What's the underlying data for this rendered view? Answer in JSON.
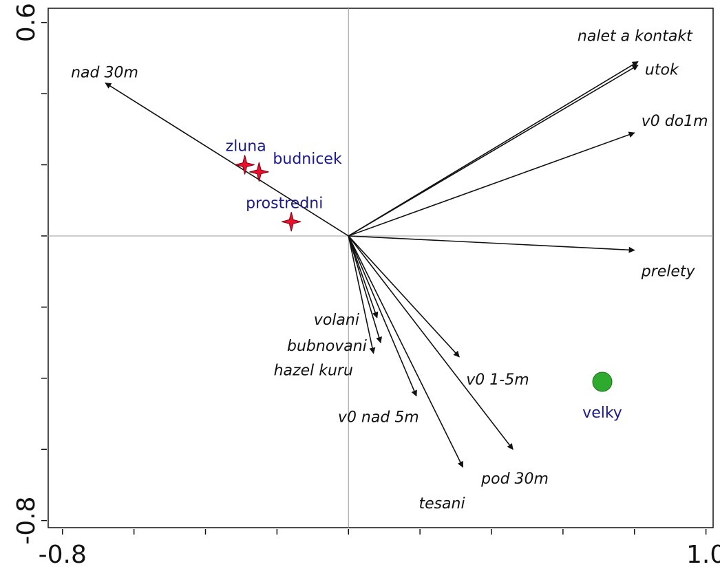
{
  "chart_data": {
    "type": "scatter",
    "subtype": "ordination-biplot",
    "title": "",
    "xlabel": "",
    "ylabel": "",
    "xlim": [
      -0.84,
      1.02
    ],
    "ylim": [
      -0.82,
      0.64
    ],
    "x_tick_labels": [
      {
        "value": -0.8,
        "label": "-0.8"
      },
      {
        "value": 1.0,
        "label": "1.0"
      }
    ],
    "y_tick_labels": [
      {
        "value": 0.6,
        "label": "0.6"
      },
      {
        "value": -0.8,
        "label": "-0.8"
      }
    ],
    "x_minor_ticks": [
      -0.8,
      -0.6,
      -0.4,
      -0.2,
      0.0,
      0.2,
      0.4,
      0.6,
      0.8,
      1.0
    ],
    "y_minor_ticks": [
      0.6,
      0.4,
      0.2,
      0.0,
      -0.2,
      -0.4,
      -0.6,
      -0.8
    ],
    "zero_lines": true,
    "colors": {
      "arrow": "#111111",
      "species_marker": "#e8112d",
      "species_label": "#1a1a8c",
      "site_marker": "#2eaa2e",
      "site_label": "#1a1a8c"
    },
    "vectors": [
      {
        "name": "nad 30m",
        "x": -0.68,
        "y": 0.43
      },
      {
        "name": "nalet a kontakt",
        "x": 0.81,
        "y": 0.49
      },
      {
        "name": "utok",
        "x": 0.81,
        "y": 0.48
      },
      {
        "name": "v0 do1m",
        "x": 0.8,
        "y": 0.29
      },
      {
        "name": "prelety",
        "x": 0.8,
        "y": -0.04
      },
      {
        "name": "volani",
        "x": 0.08,
        "y": -0.23
      },
      {
        "name": "bubnovani",
        "x": 0.09,
        "y": -0.3
      },
      {
        "name": "hazel kuru",
        "x": 0.07,
        "y": -0.33
      },
      {
        "name": "v0 1-5m",
        "x": 0.31,
        "y": -0.34
      },
      {
        "name": "v0 nad 5m",
        "x": 0.19,
        "y": -0.45
      },
      {
        "name": "pod 30m",
        "x": 0.46,
        "y": -0.6
      },
      {
        "name": "tesani",
        "x": 0.32,
        "y": -0.65
      }
    ],
    "species": [
      {
        "name": "zluna",
        "x": -0.29,
        "y": 0.2
      },
      {
        "name": "budnicek",
        "x": -0.25,
        "y": 0.18
      },
      {
        "name": "prostredni",
        "x": -0.16,
        "y": 0.04
      }
    ],
    "sites": [
      {
        "name": "velky",
        "x": 0.71,
        "y": -0.41
      }
    ]
  }
}
